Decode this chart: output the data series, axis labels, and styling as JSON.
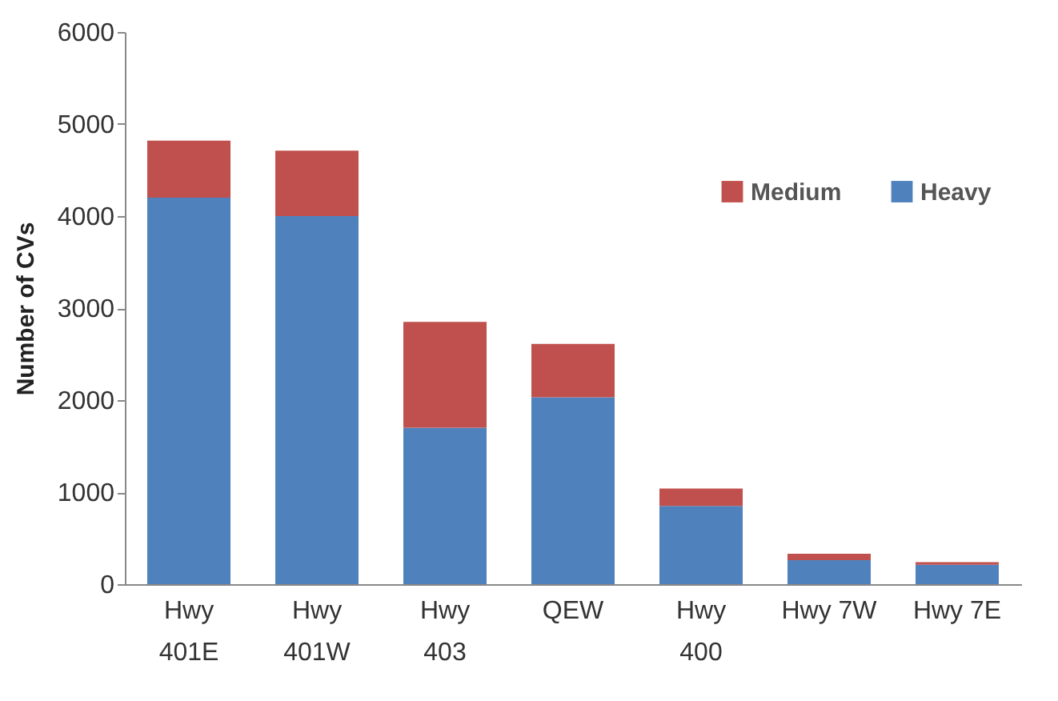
{
  "chart_data": {
    "type": "bar",
    "ylabel": "Number of CVs",
    "categories": [
      "Hwy 401E",
      "Hwy 401W",
      "Hwy 403",
      "QEW",
      "Hwy 400",
      "Hwy 7W",
      "Hwy 7E"
    ],
    "stacked": true,
    "legend": "top right",
    "grid": false,
    "ylim": [
      0,
      6000
    ],
    "yticks": [
      0,
      1000,
      2000,
      3000,
      4000,
      5000,
      6000
    ],
    "series": [
      {
        "name": "Heavy",
        "color": "#4f81bd",
        "values": [
          4200,
          4000,
          1700,
          2030,
          850,
          260,
          210
        ]
      },
      {
        "name": "Medium",
        "color": "#c0504d",
        "values": [
          620,
          710,
          1150,
          580,
          190,
          70,
          30
        ]
      }
    ]
  }
}
